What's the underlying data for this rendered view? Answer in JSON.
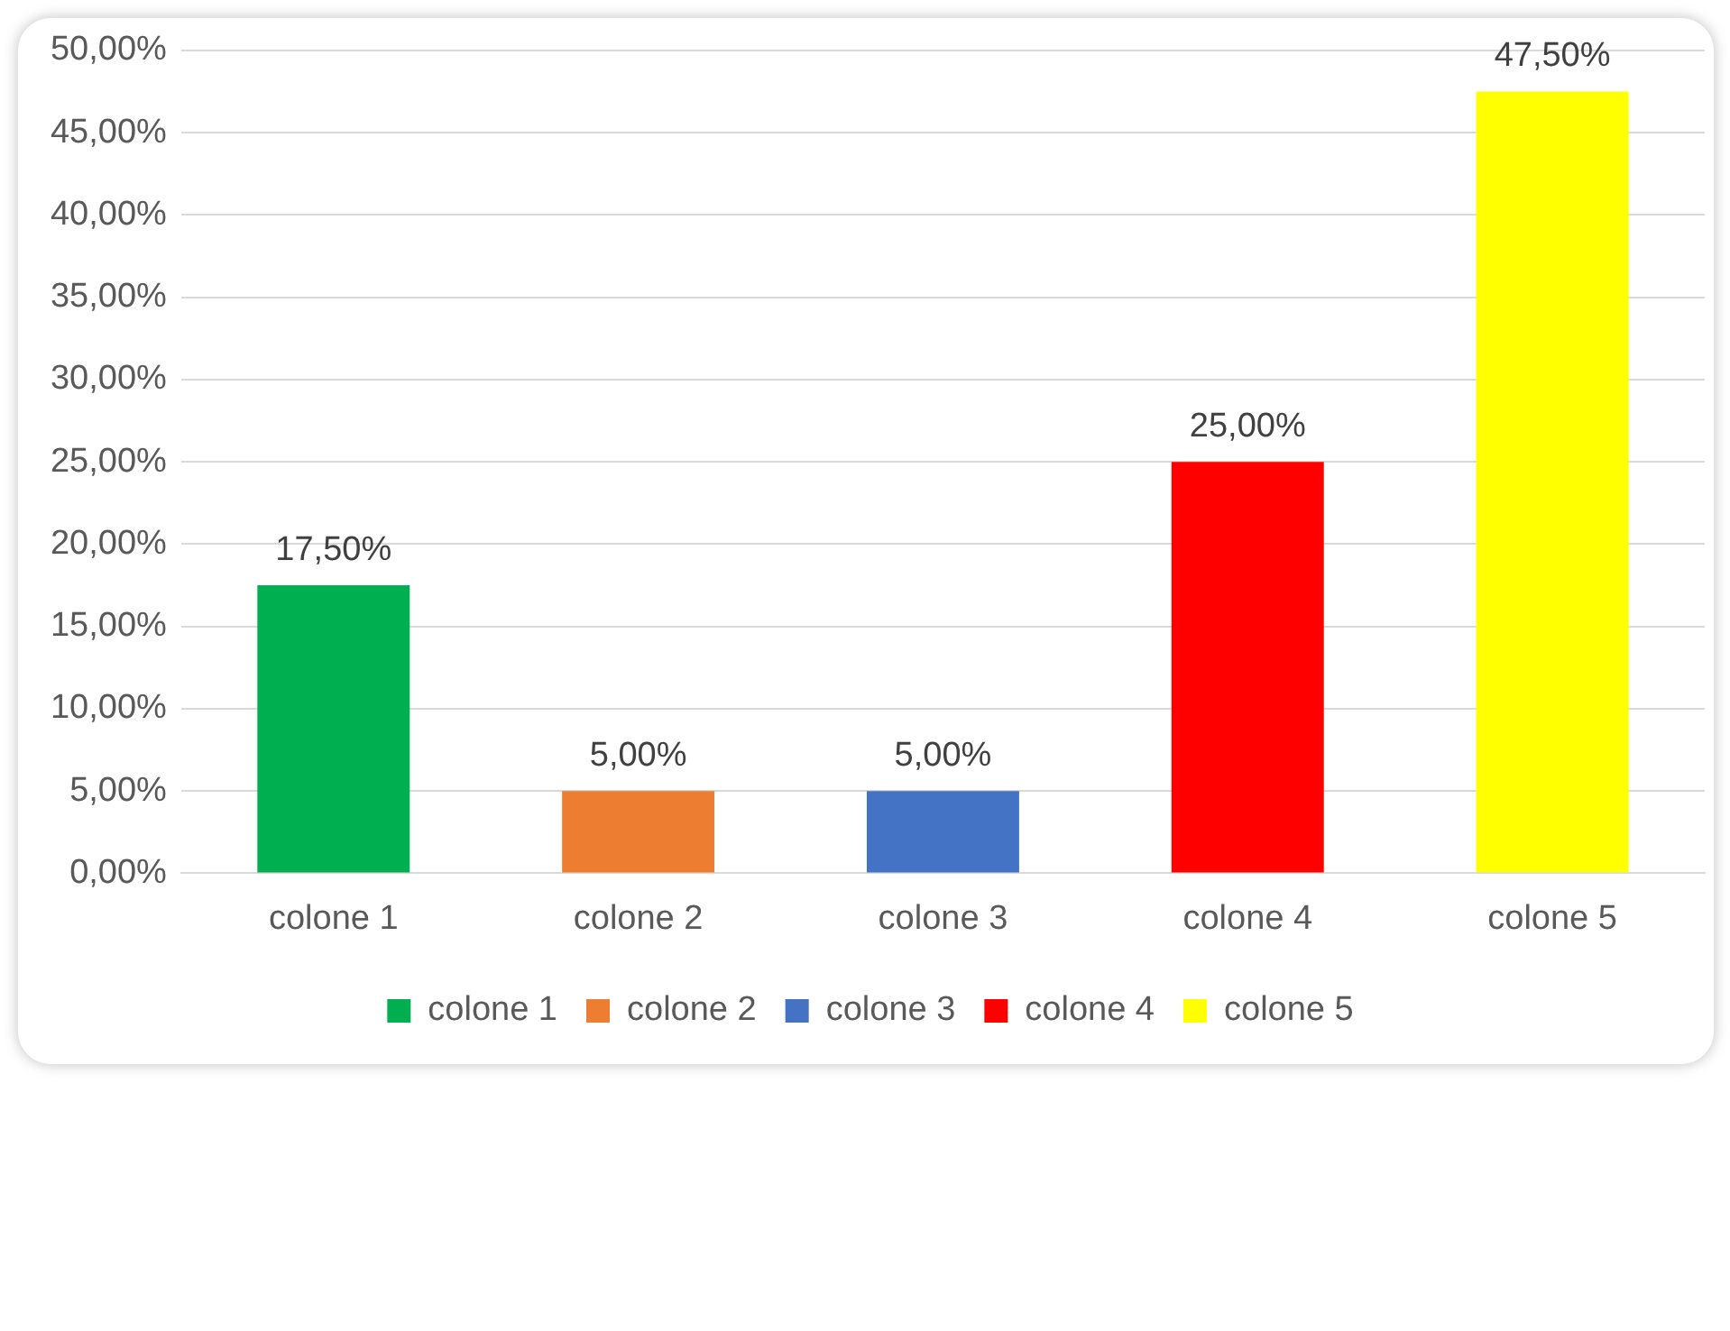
{
  "chart_data": {
    "type": "bar",
    "categories": [
      "colone 1",
      "colone 2",
      "colone 3",
      "colone 4",
      "colone 5"
    ],
    "series": [
      {
        "name": "colone 1",
        "color": "#00b050",
        "values": [
          17.5,
          null,
          null,
          null,
          null
        ],
        "value_labels": [
          "17,50%",
          null,
          null,
          null,
          null
        ]
      },
      {
        "name": "colone 2",
        "color": "#ed7d31",
        "values": [
          null,
          5,
          null,
          null,
          null
        ],
        "value_labels": [
          null,
          "5,00%",
          null,
          null,
          null
        ]
      },
      {
        "name": "colone 3",
        "color": "#4472c4",
        "values": [
          null,
          null,
          5,
          null,
          null
        ],
        "value_labels": [
          null,
          null,
          "5,00%",
          null,
          null
        ]
      },
      {
        "name": "colone 4",
        "color": "#ff0000",
        "values": [
          null,
          null,
          null,
          25,
          null
        ],
        "value_labels": [
          null,
          null,
          null,
          "25,00%",
          null
        ]
      },
      {
        "name": "colone 5",
        "color": "#ffff00",
        "values": [
          null,
          null,
          null,
          null,
          47.5
        ],
        "value_labels": [
          null,
          null,
          null,
          null,
          "47,50%"
        ]
      }
    ],
    "ylim": [
      0,
      50
    ],
    "yticks": [
      {
        "value": 0,
        "label": "0,00%"
      },
      {
        "value": 5,
        "label": "5,00%"
      },
      {
        "value": 10,
        "label": "10,00%"
      },
      {
        "value": 15,
        "label": "15,00%"
      },
      {
        "value": 20,
        "label": "20,00%"
      },
      {
        "value": 25,
        "label": "25,00%"
      },
      {
        "value": 30,
        "label": "30,00%"
      },
      {
        "value": 35,
        "label": "35,00%"
      },
      {
        "value": 40,
        "label": "40,00%"
      },
      {
        "value": 45,
        "label": "45,00%"
      },
      {
        "value": 50,
        "label": "50,00%"
      }
    ],
    "grid": "y",
    "legend": "bottom"
  }
}
